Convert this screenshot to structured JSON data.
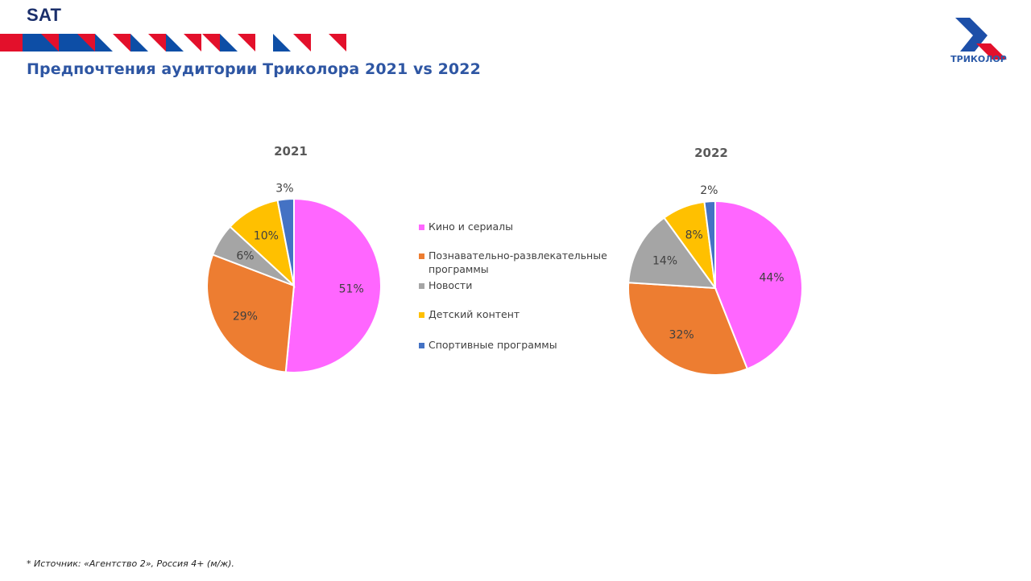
{
  "header": {
    "brand": "SAT",
    "title": "Предпочтения аудитории Триколора 2021 vs 2022",
    "logo_text": "ТРИКОЛОР"
  },
  "colors": {
    "brand_blue": "#0d4ea6",
    "brand_red": "#e3102b",
    "title_blue": "#2e56a3"
  },
  "legend": [
    {
      "label": "Кино и сериалы",
      "color": "#ff66ff"
    },
    {
      "label": "Познавательно-развлекательные программы",
      "color": "#ed7d31"
    },
    {
      "label": "Новости",
      "color": "#a5a5a5"
    },
    {
      "label": "Детский контент",
      "color": "#ffc000"
    },
    {
      "label": "Спортивные программы",
      "color": "#4472c4"
    }
  ],
  "chart_data": [
    {
      "type": "pie",
      "title": "2021",
      "categories": [
        "Кино и сериалы",
        "Познавательно-развлекательные программы",
        "Новости",
        "Детский контент",
        "Спортивные программы"
      ],
      "values": [
        51,
        29,
        6,
        10,
        3
      ],
      "labels": [
        "51%",
        "29%",
        "6%",
        "10%",
        "3%"
      ],
      "colors": [
        "#ff66ff",
        "#ed7d31",
        "#a5a5a5",
        "#ffc000",
        "#4472c4"
      ],
      "start_angle": "12 o'clock, clockwise",
      "legend": "center-between"
    },
    {
      "type": "pie",
      "title": "2022",
      "categories": [
        "Кино и сериалы",
        "Познавательно-развлекательные программы",
        "Новости",
        "Детский контент",
        "Спортивные программы"
      ],
      "values": [
        44,
        32,
        14,
        8,
        2
      ],
      "labels": [
        "44%",
        "32%",
        "14%",
        "8%",
        "2%"
      ],
      "colors": [
        "#ff66ff",
        "#ed7d31",
        "#a5a5a5",
        "#ffc000",
        "#4472c4"
      ],
      "start_angle": "12 o'clock, clockwise",
      "legend": "center-between"
    }
  ],
  "footnote": "* Источник: «Агентство 2», Россия 4+ (м/ж)."
}
